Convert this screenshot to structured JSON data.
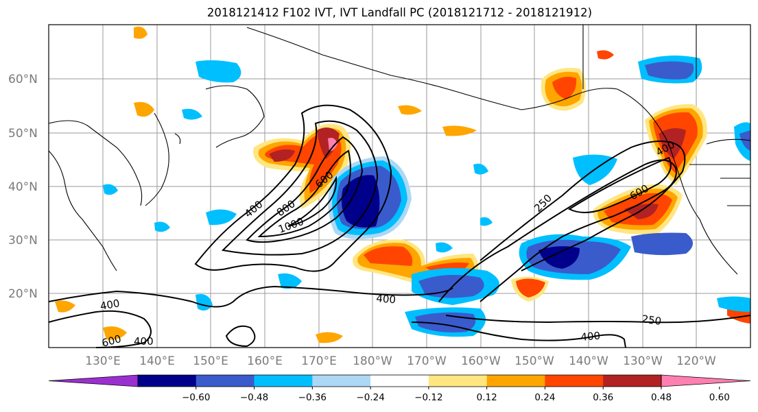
{
  "title": "2018121412 F102 IVT, IVT Landfall PC (2018121712 - 2018121912)",
  "lat_labels": [
    "60°N",
    "50°N",
    "40°N",
    "30°N",
    "20°N"
  ],
  "lon_labels": [
    "130°E",
    "140°E",
    "150°E",
    "160°E",
    "170°E",
    "180°W",
    "170°W",
    "160°W",
    "150°W",
    "140°W",
    "130°W",
    "120°W"
  ],
  "contour_labels": [
    "400",
    "800",
    "1000",
    "600",
    "250",
    "400",
    "600",
    "400",
    "400",
    "600",
    "400",
    "400",
    "250"
  ],
  "colorbar": {
    "ticks": [
      "−0.60",
      "−0.48",
      "−0.36",
      "−0.24",
      "−0.12",
      "0.12",
      "0.24",
      "0.36",
      "0.48",
      "0.60"
    ],
    "colors": [
      "#9b30d0",
      "#00008b",
      "#3a5bcc",
      "#00bfff",
      "#add8f5",
      "#ffffff",
      "#ffe680",
      "#ffa500",
      "#ff4500",
      "#b22222",
      "#ff80b0"
    ]
  }
}
